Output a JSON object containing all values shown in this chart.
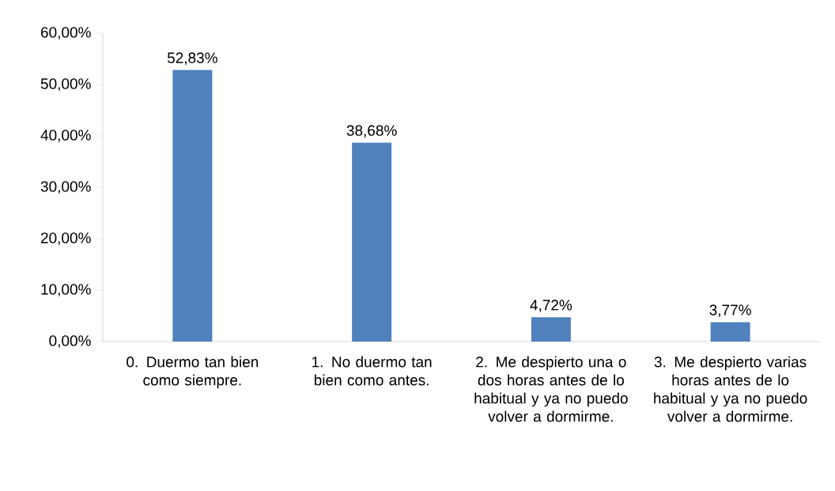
{
  "chart_data": {
    "type": "bar",
    "categories": [
      "0. Duermo tan bien como siempre.",
      "1. No duermo tan bien como antes.",
      "2. Me despierto una o dos horas antes de lo habitual y ya no puedo volver a dormirme.",
      "3. Me despierto varias horas antes de lo habitual y ya no puedo volver a dormirme."
    ],
    "values": [
      52.83,
      38.68,
      4.72,
      3.77
    ],
    "value_labels": [
      "52,83%",
      "38,68%",
      "4,72%",
      "3,77%"
    ],
    "color": "#4f81bd",
    "ylim": [
      0,
      60
    ],
    "yticks": [
      {
        "value": 0,
        "label": "0,00%"
      },
      {
        "value": 10,
        "label": "10,00%"
      },
      {
        "value": 20,
        "label": "20,00%"
      },
      {
        "value": 30,
        "label": "30,00%"
      },
      {
        "value": 40,
        "label": "40,00%"
      },
      {
        "value": 50,
        "label": "50,00%"
      },
      {
        "value": 60,
        "label": "60,00%"
      }
    ],
    "grid": false
  }
}
